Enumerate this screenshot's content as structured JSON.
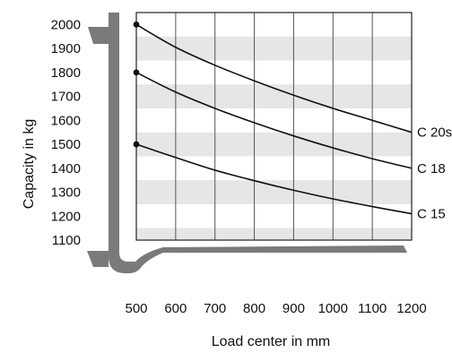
{
  "chart_data": {
    "type": "line",
    "xlabel": "Load center in mm",
    "ylabel": "Capacity in kg",
    "xlim": [
      500,
      1200
    ],
    "ylim": [
      1100,
      2000
    ],
    "x_ticks": [
      500,
      600,
      700,
      800,
      900,
      1000,
      1100,
      1200
    ],
    "y_ticks": [
      1100,
      1200,
      1300,
      1400,
      1500,
      1600,
      1700,
      1800,
      1900,
      2000
    ],
    "grid": true,
    "legend": "none",
    "x": [
      500,
      600,
      700,
      800,
      900,
      1000,
      1100,
      1200
    ],
    "series": [
      {
        "name": "C 20s",
        "values": [
          2000,
          1905,
          1830,
          1765,
          1705,
          1650,
          1600,
          1550
        ]
      },
      {
        "name": "C 18",
        "values": [
          1800,
          1718,
          1650,
          1590,
          1535,
          1485,
          1440,
          1400
        ]
      },
      {
        "name": "C 15",
        "values": [
          1500,
          1445,
          1392,
          1348,
          1308,
          1272,
          1240,
          1210
        ]
      }
    ]
  }
}
